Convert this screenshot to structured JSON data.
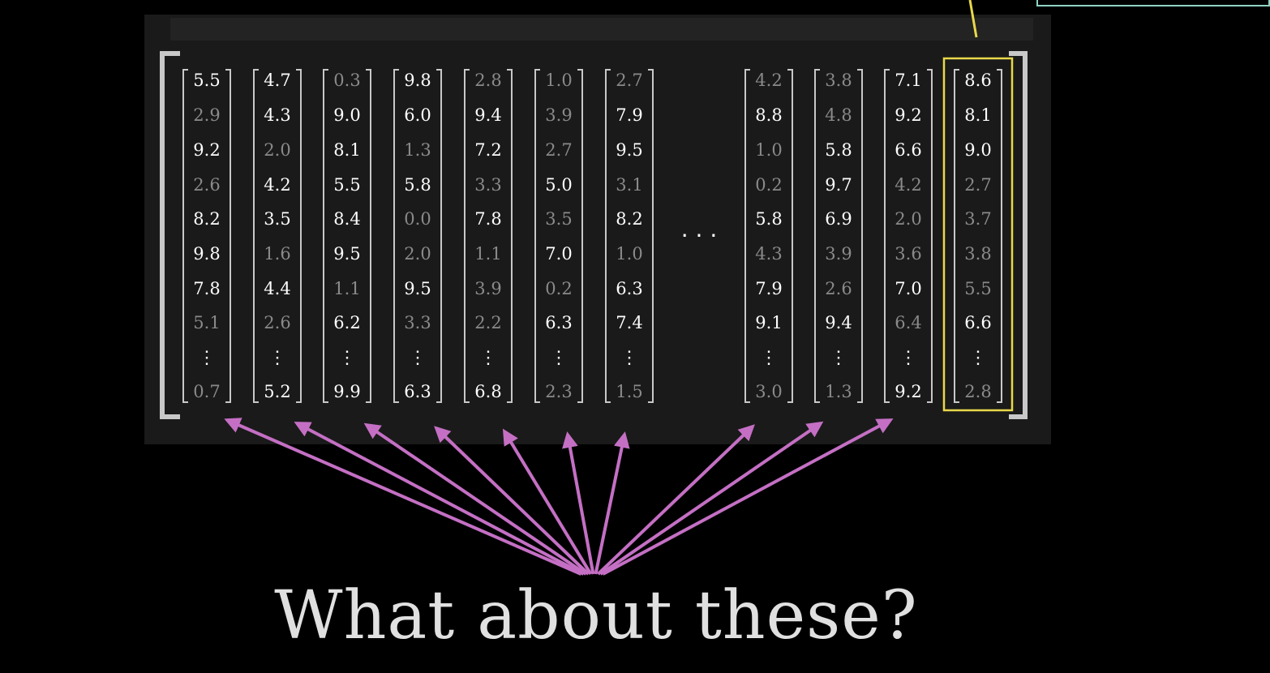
{
  "caption": "What about these?",
  "ellipsis": "· · ·",
  "colors": {
    "background": "#000000",
    "panel": "#1a1a1a",
    "bracket": "#c8c8c8",
    "bright_text": "#ffffff",
    "dim_text": "#8a8a8a",
    "arrow": "#c46fc4",
    "highlight": "#e8d84a",
    "teal_box": "#8fd3c3"
  },
  "columns": [
    {
      "values": [
        "5.5",
        "2.9",
        "9.2",
        "2.6",
        "8.2",
        "9.8",
        "7.8",
        "5.1",
        "0.7"
      ],
      "bright": [
        1,
        0,
        1,
        0,
        1,
        1,
        1,
        0,
        0
      ]
    },
    {
      "values": [
        "4.7",
        "4.3",
        "2.0",
        "4.2",
        "3.5",
        "1.6",
        "4.4",
        "2.6",
        "5.2"
      ],
      "bright": [
        1,
        1,
        0,
        1,
        1,
        0,
        1,
        0,
        1
      ]
    },
    {
      "values": [
        "0.3",
        "9.0",
        "8.1",
        "5.5",
        "8.4",
        "9.5",
        "1.1",
        "6.2",
        "9.9"
      ],
      "bright": [
        0,
        1,
        1,
        1,
        1,
        1,
        0,
        1,
        1
      ]
    },
    {
      "values": [
        "9.8",
        "6.0",
        "1.3",
        "5.8",
        "0.0",
        "2.0",
        "9.5",
        "3.3",
        "6.3"
      ],
      "bright": [
        1,
        1,
        0,
        1,
        0,
        0,
        1,
        0,
        1
      ]
    },
    {
      "values": [
        "2.8",
        "9.4",
        "7.2",
        "3.3",
        "7.8",
        "1.1",
        "3.9",
        "2.2",
        "6.8"
      ],
      "bright": [
        0,
        1,
        1,
        0,
        1,
        0,
        0,
        0,
        1
      ]
    },
    {
      "values": [
        "1.0",
        "3.9",
        "2.7",
        "5.0",
        "3.5",
        "7.0",
        "0.2",
        "6.3",
        "2.3"
      ],
      "bright": [
        0,
        0,
        0,
        1,
        0,
        1,
        0,
        1,
        0
      ]
    },
    {
      "values": [
        "2.7",
        "7.9",
        "9.5",
        "3.1",
        "8.2",
        "1.0",
        "6.3",
        "7.4",
        "1.5"
      ],
      "bright": [
        0,
        1,
        1,
        0,
        1,
        0,
        1,
        1,
        0
      ]
    },
    {
      "values": [
        "4.2",
        "8.8",
        "1.0",
        "0.2",
        "5.8",
        "4.3",
        "7.9",
        "9.1",
        "3.0"
      ],
      "bright": [
        0,
        1,
        0,
        0,
        1,
        0,
        1,
        1,
        0
      ]
    },
    {
      "values": [
        "3.8",
        "4.8",
        "5.8",
        "9.7",
        "6.9",
        "3.9",
        "2.6",
        "9.4",
        "1.3"
      ],
      "bright": [
        0,
        0,
        1,
        1,
        1,
        0,
        0,
        1,
        0
      ]
    },
    {
      "values": [
        "7.1",
        "9.2",
        "6.6",
        "4.2",
        "2.0",
        "3.6",
        "7.0",
        "6.4",
        "9.2"
      ],
      "bright": [
        1,
        1,
        1,
        0,
        0,
        0,
        1,
        0,
        1
      ]
    },
    {
      "values": [
        "8.6",
        "8.1",
        "9.0",
        "2.7",
        "3.7",
        "3.8",
        "5.5",
        "6.6",
        "2.8"
      ],
      "bright": [
        1,
        1,
        1,
        0,
        0,
        0,
        0,
        1,
        0
      ],
      "highlighted": true
    }
  ]
}
